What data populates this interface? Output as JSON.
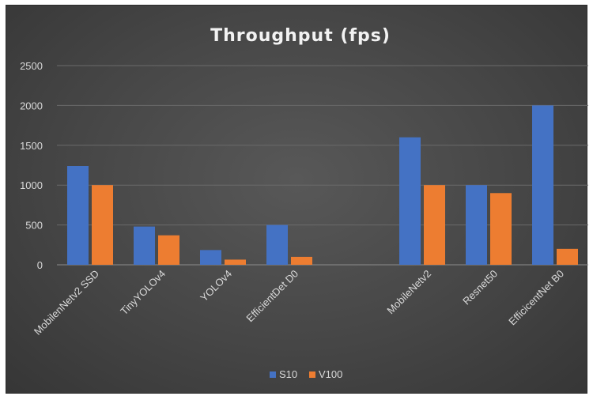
{
  "chart_data": {
    "type": "bar",
    "title": "Throughput (fps)",
    "xlabel": "",
    "ylabel": "",
    "categories": [
      "MobilenNetv2 SSD",
      "TinyYOLOv4",
      "YOLOv4",
      "EfficientDet D0",
      "",
      "MobileNetv2",
      "Resnet50",
      "EfficicentNet B0"
    ],
    "series": [
      {
        "name": "S10",
        "color": "#4472c4",
        "values": [
          1240,
          480,
          185,
          500,
          null,
          1600,
          1000,
          2000
        ]
      },
      {
        "name": "V100",
        "color": "#ed7d31",
        "values": [
          1000,
          370,
          65,
          100,
          null,
          1000,
          900,
          200
        ]
      }
    ],
    "ylim": [
      0,
      2500
    ],
    "yticks": [
      "0",
      "500",
      "1000",
      "1500",
      "2000",
      "2500"
    ],
    "grid": true,
    "legend_position": "bottom",
    "background": "#444444"
  }
}
